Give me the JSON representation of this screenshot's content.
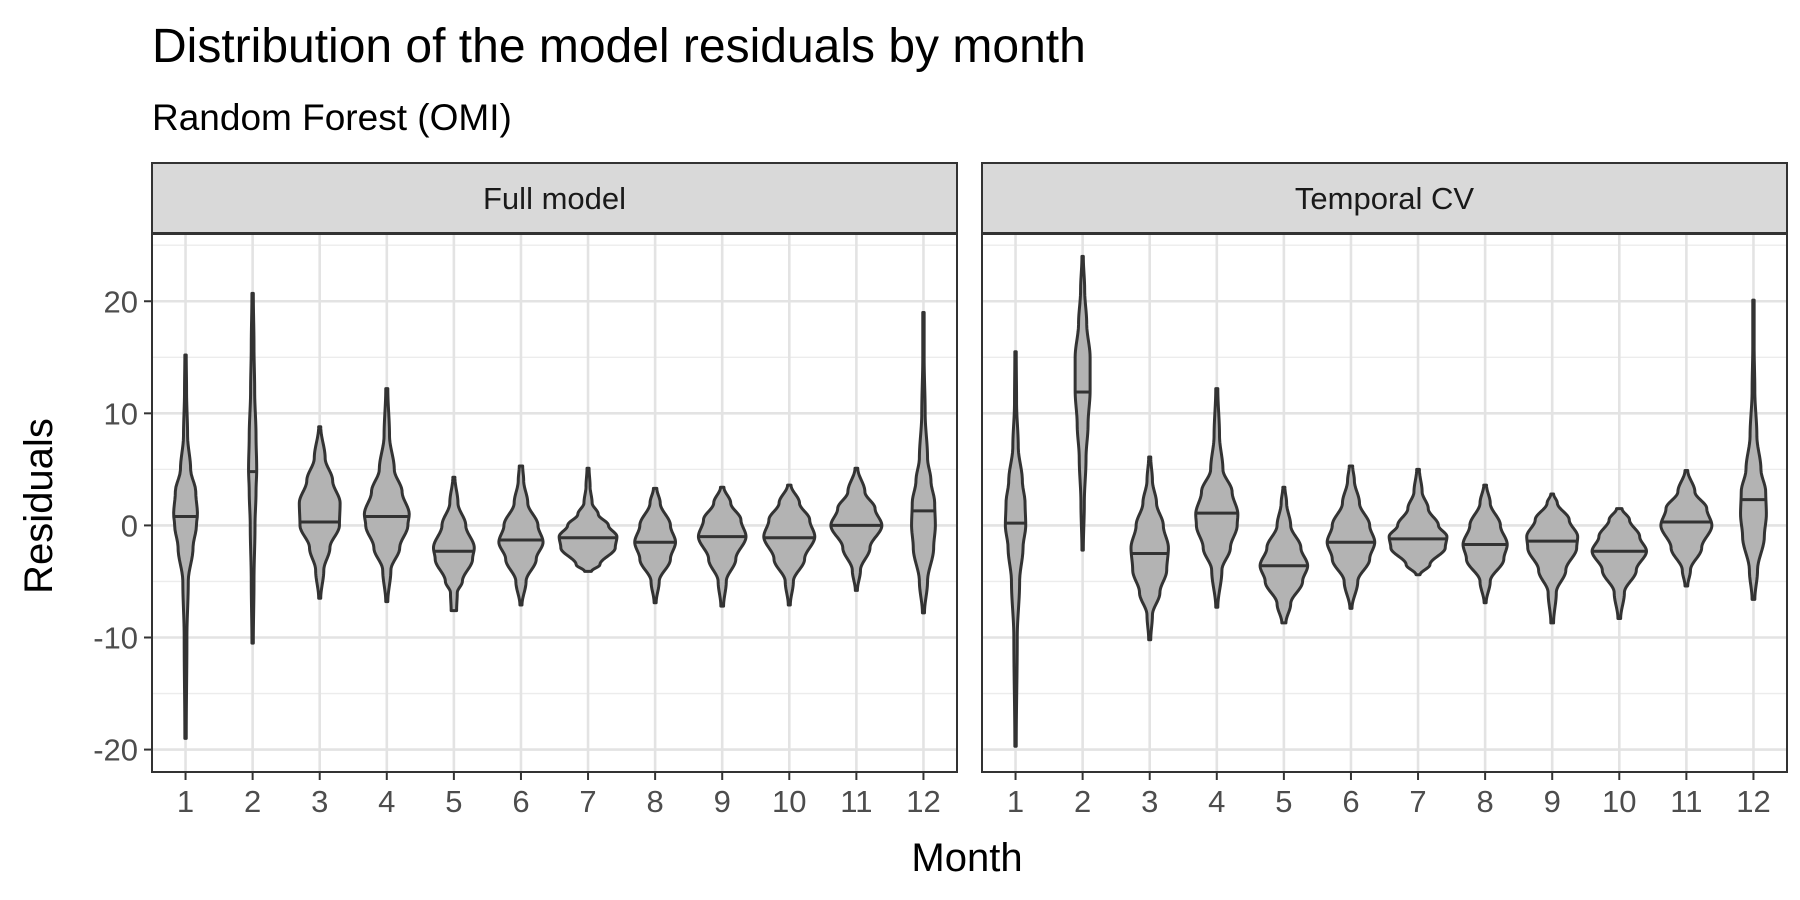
{
  "chart_data": {
    "type": "violin",
    "title": "Distribution of the model residuals by month",
    "subtitle": "Random Forest (OMI)",
    "xlabel": "Month",
    "ylabel": "Residuals",
    "ylim": [
      -22,
      26
    ],
    "yticks": [
      -20,
      -10,
      0,
      10,
      20
    ],
    "categories": [
      "1",
      "2",
      "3",
      "4",
      "5",
      "6",
      "7",
      "8",
      "9",
      "10",
      "11",
      "12"
    ],
    "grid": true,
    "fill_color": "#b3b3b3",
    "stroke_color": "#333333",
    "panels": [
      {
        "name": "Full model",
        "violins": [
          {
            "month": "1",
            "min": -19.0,
            "max": 15.2,
            "median": 0.8,
            "profile": [
              [
                -19,
                0.02
              ],
              [
                -10,
                0.04
              ],
              [
                -5,
                0.08
              ],
              [
                -2,
                0.22
              ],
              [
                0,
                0.32
              ],
              [
                1,
                0.35
              ],
              [
                3,
                0.3
              ],
              [
                5,
                0.15
              ],
              [
                8,
                0.06
              ],
              [
                12,
                0.03
              ],
              [
                15.2,
                0.02
              ]
            ]
          },
          {
            "month": "2",
            "min": -10.5,
            "max": 20.7,
            "median": 4.8,
            "profile": [
              [
                -10.5,
                0.02
              ],
              [
                -5,
                0.04
              ],
              [
                0,
                0.07
              ],
              [
                3,
                0.1
              ],
              [
                5,
                0.12
              ],
              [
                8,
                0.1
              ],
              [
                12,
                0.06
              ],
              [
                16,
                0.04
              ],
              [
                20.7,
                0.02
              ]
            ]
          },
          {
            "month": "3",
            "min": -6.5,
            "max": 8.8,
            "median": 0.3,
            "profile": [
              [
                -6.5,
                0.03
              ],
              [
                -4,
                0.12
              ],
              [
                -2,
                0.3
              ],
              [
                0,
                0.58
              ],
              [
                2,
                0.6
              ],
              [
                4,
                0.38
              ],
              [
                6,
                0.16
              ],
              [
                8.8,
                0.03
              ]
            ]
          },
          {
            "month": "4",
            "min": -6.8,
            "max": 12.2,
            "median": 0.8,
            "profile": [
              [
                -6.8,
                0.03
              ],
              [
                -4,
                0.12
              ],
              [
                -2,
                0.38
              ],
              [
                0,
                0.62
              ],
              [
                1,
                0.66
              ],
              [
                3,
                0.45
              ],
              [
                5,
                0.22
              ],
              [
                8,
                0.08
              ],
              [
                12.2,
                0.03
              ]
            ]
          },
          {
            "month": "5",
            "min": -7.6,
            "max": 4.3,
            "median": -2.3,
            "profile": [
              [
                -7.6,
                0.08
              ],
              [
                -6,
                0.1
              ],
              [
                -5,
                0.25
              ],
              [
                -3,
                0.55
              ],
              [
                -2,
                0.6
              ],
              [
                0,
                0.35
              ],
              [
                2,
                0.12
              ],
              [
                4.3,
                0.03
              ]
            ]
          },
          {
            "month": "6",
            "min": -7.1,
            "max": 5.3,
            "median": -1.3,
            "profile": [
              [
                -7.1,
                0.03
              ],
              [
                -5,
                0.15
              ],
              [
                -3,
                0.45
              ],
              [
                -1.5,
                0.65
              ],
              [
                0,
                0.5
              ],
              [
                2,
                0.2
              ],
              [
                4,
                0.08
              ],
              [
                5.3,
                0.05
              ]
            ]
          },
          {
            "month": "7",
            "min": -4.1,
            "max": 5.1,
            "median": -1.1,
            "profile": [
              [
                -4.1,
                0.1
              ],
              [
                -3.5,
                0.35
              ],
              [
                -2,
                0.8
              ],
              [
                -1,
                0.85
              ],
              [
                0,
                0.6
              ],
              [
                1,
                0.3
              ],
              [
                2,
                0.12
              ],
              [
                3.5,
                0.06
              ],
              [
                5.1,
                0.03
              ]
            ]
          },
          {
            "month": "8",
            "min": -6.9,
            "max": 3.3,
            "median": -1.5,
            "profile": [
              [
                -6.9,
                0.03
              ],
              [
                -5,
                0.12
              ],
              [
                -3,
                0.45
              ],
              [
                -1.5,
                0.6
              ],
              [
                0,
                0.45
              ],
              [
                2,
                0.15
              ],
              [
                3.3,
                0.05
              ]
            ]
          },
          {
            "month": "9",
            "min": -7.2,
            "max": 3.4,
            "median": -1.0,
            "profile": [
              [
                -7.2,
                0.04
              ],
              [
                -5,
                0.12
              ],
              [
                -3,
                0.4
              ],
              [
                -1,
                0.7
              ],
              [
                0.5,
                0.55
              ],
              [
                2,
                0.25
              ],
              [
                3.4,
                0.05
              ]
            ]
          },
          {
            "month": "10",
            "min": -7.1,
            "max": 3.6,
            "median": -1.1,
            "profile": [
              [
                -7.1,
                0.03
              ],
              [
                -5,
                0.12
              ],
              [
                -3,
                0.45
              ],
              [
                -1,
                0.75
              ],
              [
                0.5,
                0.6
              ],
              [
                2,
                0.3
              ],
              [
                3.6,
                0.05
              ]
            ]
          },
          {
            "month": "11",
            "min": -5.8,
            "max": 5.1,
            "median": 0.0,
            "profile": [
              [
                -5.8,
                0.03
              ],
              [
                -4,
                0.12
              ],
              [
                -2,
                0.4
              ],
              [
                0,
                0.75
              ],
              [
                1.5,
                0.55
              ],
              [
                3,
                0.25
              ],
              [
                5.1,
                0.04
              ]
            ]
          },
          {
            "month": "12",
            "min": -7.8,
            "max": 19.0,
            "median": 1.3,
            "profile": [
              [
                -7.8,
                0.03
              ],
              [
                -5,
                0.12
              ],
              [
                -2,
                0.3
              ],
              [
                0,
                0.35
              ],
              [
                2,
                0.33
              ],
              [
                4,
                0.22
              ],
              [
                6,
                0.12
              ],
              [
                10,
                0.05
              ],
              [
                15,
                0.02
              ],
              [
                19,
                0.02
              ]
            ]
          }
        ]
      },
      {
        "name": "Temporal CV",
        "violins": [
          {
            "month": "1",
            "min": -19.7,
            "max": 15.5,
            "median": 0.2,
            "profile": [
              [
                -19.7,
                0.02
              ],
              [
                -10,
                0.05
              ],
              [
                -5,
                0.12
              ],
              [
                -2,
                0.22
              ],
              [
                0,
                0.3
              ],
              [
                2,
                0.28
              ],
              [
                4,
                0.2
              ],
              [
                7,
                0.08
              ],
              [
                11,
                0.03
              ],
              [
                15.5,
                0.02
              ]
            ]
          },
          {
            "month": "2",
            "min": -2.2,
            "max": 24.0,
            "median": 11.9,
            "profile": [
              [
                -2.2,
                0.02
              ],
              [
                2,
                0.05
              ],
              [
                6,
                0.1
              ],
              [
                9,
                0.16
              ],
              [
                12,
                0.22
              ],
              [
                15,
                0.22
              ],
              [
                18,
                0.12
              ],
              [
                21,
                0.06
              ],
              [
                24,
                0.02
              ]
            ]
          },
          {
            "month": "3",
            "min": -10.2,
            "max": 6.1,
            "median": -2.5,
            "profile": [
              [
                -10.2,
                0.03
              ],
              [
                -8,
                0.08
              ],
              [
                -6,
                0.3
              ],
              [
                -4,
                0.5
              ],
              [
                -2,
                0.55
              ],
              [
                0,
                0.4
              ],
              [
                2,
                0.2
              ],
              [
                4,
                0.08
              ],
              [
                6.1,
                0.03
              ]
            ]
          },
          {
            "month": "4",
            "min": -7.3,
            "max": 12.2,
            "median": 1.1,
            "profile": [
              [
                -7.3,
                0.03
              ],
              [
                -4,
                0.15
              ],
              [
                -2,
                0.4
              ],
              [
                0,
                0.6
              ],
              [
                1,
                0.62
              ],
              [
                3,
                0.45
              ],
              [
                5,
                0.18
              ],
              [
                8,
                0.08
              ],
              [
                12.2,
                0.03
              ]
            ]
          },
          {
            "month": "5",
            "min": -8.7,
            "max": 3.4,
            "median": -3.6,
            "profile": [
              [
                -8.7,
                0.06
              ],
              [
                -7,
                0.2
              ],
              [
                -5,
                0.55
              ],
              [
                -3.6,
                0.7
              ],
              [
                -2,
                0.5
              ],
              [
                0,
                0.2
              ],
              [
                2,
                0.08
              ],
              [
                3.4,
                0.03
              ]
            ]
          },
          {
            "month": "6",
            "min": -7.4,
            "max": 5.3,
            "median": -1.5,
            "profile": [
              [
                -7.4,
                0.03
              ],
              [
                -5,
                0.2
              ],
              [
                -3,
                0.55
              ],
              [
                -1.5,
                0.7
              ],
              [
                0,
                0.55
              ],
              [
                2,
                0.25
              ],
              [
                4,
                0.1
              ],
              [
                5.3,
                0.05
              ]
            ]
          },
          {
            "month": "7",
            "min": -4.4,
            "max": 5.0,
            "median": -1.2,
            "profile": [
              [
                -4.4,
                0.06
              ],
              [
                -3.5,
                0.35
              ],
              [
                -2,
                0.8
              ],
              [
                -1,
                0.85
              ],
              [
                0,
                0.6
              ],
              [
                1.5,
                0.3
              ],
              [
                3,
                0.12
              ],
              [
                5,
                0.04
              ]
            ]
          },
          {
            "month": "8",
            "min": -6.9,
            "max": 3.6,
            "median": -1.7,
            "profile": [
              [
                -6.9,
                0.03
              ],
              [
                -5,
                0.15
              ],
              [
                -3,
                0.55
              ],
              [
                -1.7,
                0.65
              ],
              [
                0,
                0.45
              ],
              [
                2,
                0.15
              ],
              [
                3.6,
                0.04
              ]
            ]
          },
          {
            "month": "9",
            "min": -8.7,
            "max": 2.8,
            "median": -1.4,
            "profile": [
              [
                -8.7,
                0.04
              ],
              [
                -6,
                0.12
              ],
              [
                -4,
                0.4
              ],
              [
                -2,
                0.72
              ],
              [
                -1,
                0.75
              ],
              [
                0.5,
                0.5
              ],
              [
                2,
                0.15
              ],
              [
                2.8,
                0.04
              ]
            ]
          },
          {
            "month": "10",
            "min": -8.3,
            "max": 1.5,
            "median": -2.3,
            "profile": [
              [
                -8.3,
                0.04
              ],
              [
                -6,
                0.15
              ],
              [
                -4,
                0.5
              ],
              [
                -2.3,
                0.8
              ],
              [
                -1,
                0.6
              ],
              [
                0.5,
                0.3
              ],
              [
                1.5,
                0.08
              ]
            ]
          },
          {
            "month": "11",
            "min": -5.4,
            "max": 4.9,
            "median": 0.3,
            "profile": [
              [
                -5.4,
                0.04
              ],
              [
                -4,
                0.12
              ],
              [
                -2,
                0.45
              ],
              [
                0,
                0.75
              ],
              [
                1.5,
                0.6
              ],
              [
                3,
                0.25
              ],
              [
                4.9,
                0.04
              ]
            ]
          },
          {
            "month": "12",
            "min": -6.6,
            "max": 20.1,
            "median": 2.3,
            "profile": [
              [
                -6.6,
                0.04
              ],
              [
                -4,
                0.12
              ],
              [
                -1,
                0.32
              ],
              [
                1,
                0.38
              ],
              [
                3,
                0.36
              ],
              [
                5,
                0.22
              ],
              [
                8,
                0.1
              ],
              [
                12,
                0.04
              ],
              [
                16,
                0.02
              ],
              [
                20.1,
                0.02
              ]
            ]
          }
        ]
      }
    ]
  }
}
